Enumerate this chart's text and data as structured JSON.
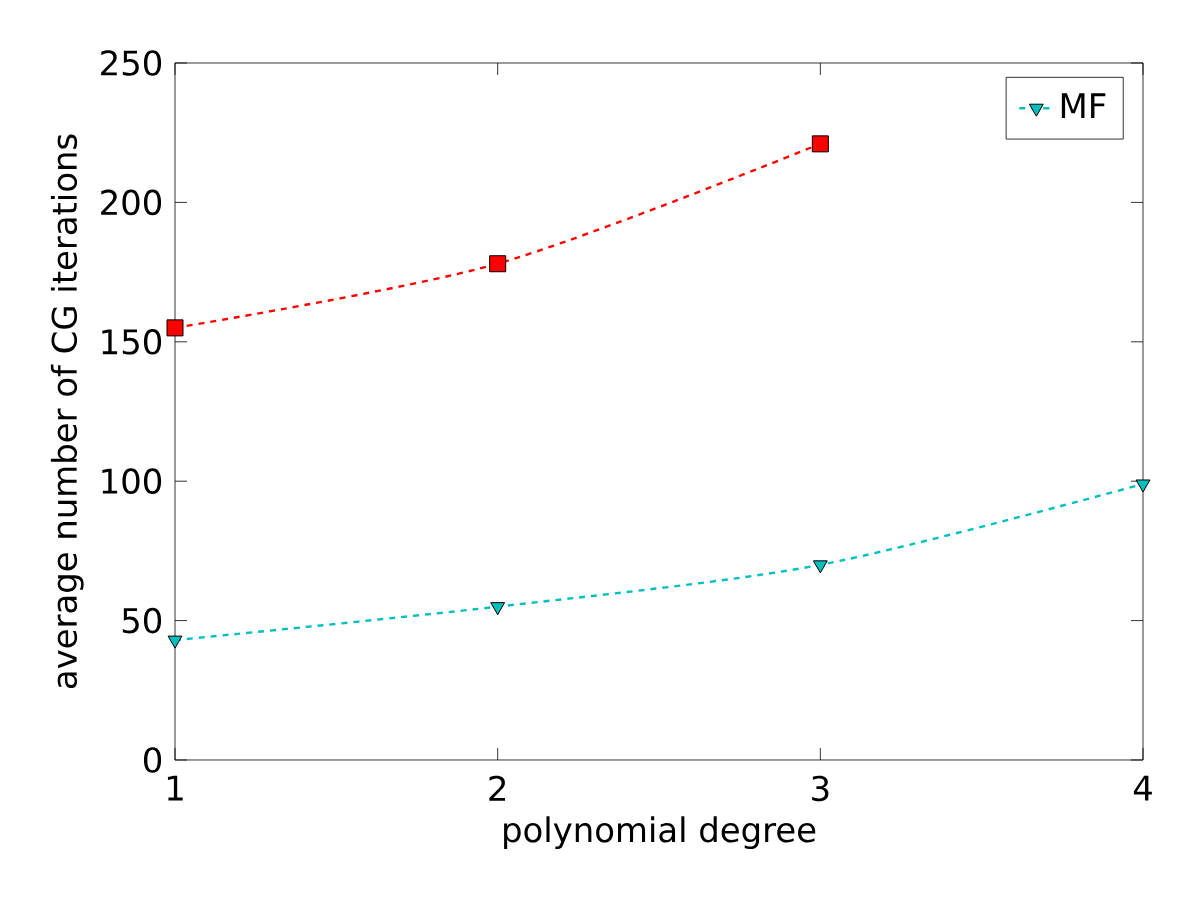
{
  "chart_data": {
    "type": "line",
    "xlabel": "polynomial degree",
    "ylabel": "average number of CG iterations",
    "x": [
      1,
      2,
      3,
      4
    ],
    "series": [
      {
        "color": "#ff0000",
        "marker": "square",
        "values": [
          155,
          178,
          221,
          null
        ]
      },
      {
        "name": "MF",
        "color": "#00bfbf",
        "marker": "triangle",
        "values": [
          43,
          55,
          70,
          99
        ]
      }
    ],
    "xlim": [
      1,
      4
    ],
    "ylim": [
      0,
      250
    ],
    "xticks": [
      1,
      2,
      3,
      4
    ],
    "yticks": [
      0,
      50,
      100,
      150,
      200,
      250
    ],
    "line_style": "dashed",
    "legend": "top right"
  }
}
